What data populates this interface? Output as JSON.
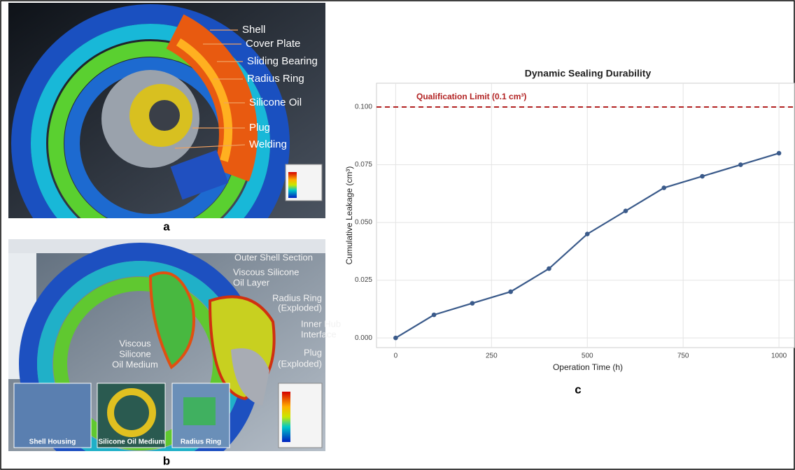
{
  "panels": [
    {
      "label": "a",
      "callouts": [
        "Shell",
        "Cover Plate",
        "Sliding Bearing",
        "Radius Ring",
        "Silicone Oil",
        "Plug",
        "Welding"
      ]
    },
    {
      "label": "b",
      "callouts": [
        [
          "Outer Shell Section"
        ],
        [
          "Viscous Silicone",
          "Oil Layer"
        ],
        [
          "Radius Ring",
          "(Exploded)"
        ],
        [
          "Inner Hub",
          "Interface"
        ],
        [
          "Plug",
          "(Exploded)"
        ],
        [
          "Viscous",
          "Silicone",
          "Oil Medium"
        ]
      ],
      "insets": [
        "Shell Housing",
        "Silicone Oil Medium",
        "Radius Ring"
      ]
    }
  ],
  "chart_data": {
    "type": "line",
    "label": "c",
    "title": "Dynamic Sealing Durability",
    "x_label": "Operation Time (h)",
    "y_label": "Cumulative Leakage (cm³)",
    "x": [
      0,
      100,
      200,
      300,
      400,
      500,
      600,
      700,
      800,
      900,
      1000
    ],
    "series": [
      {
        "color": "#3a5a8a",
        "values": [
          0,
          0.01,
          0.015,
          0.02,
          0.03,
          0.045,
          0.055,
          0.065,
          0.07,
          0.075,
          0.08
        ]
      }
    ],
    "reference_line": {
      "value": 0.1,
      "label": "Qualification Limit (0.1 cm³)",
      "color": "#b22222"
    },
    "xlim": [
      -50,
      1040
    ],
    "ylim": [
      -0.0042,
      0.1103
    ],
    "xticks": [
      0,
      250,
      500,
      750,
      1000
    ],
    "yticks": [
      {
        "value": 0,
        "label": "0.000"
      },
      {
        "value": 0.025,
        "label": "0.025"
      },
      {
        "value": 0.05,
        "label": "0.050"
      },
      {
        "value": 0.075,
        "label": "0.075"
      },
      {
        "value": 0.1,
        "label": "0.100"
      }
    ],
    "grid": true
  }
}
